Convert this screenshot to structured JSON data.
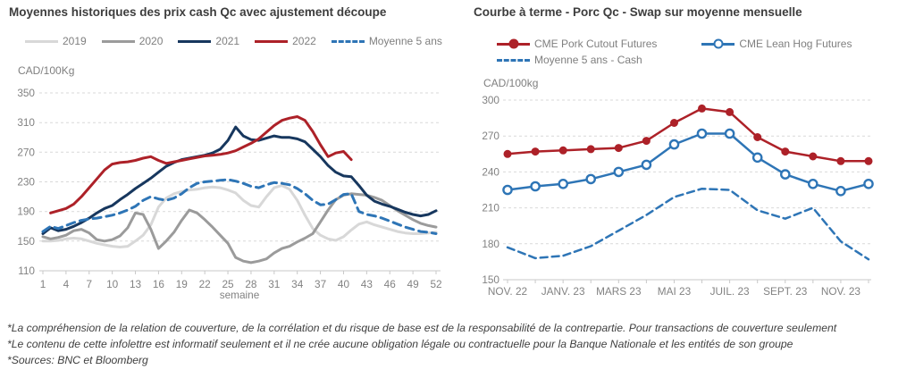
{
  "chart_data": [
    {
      "id": "left",
      "type": "line",
      "title": "Moyennes historiques des prix cash Qc avec ajustement découpe",
      "unit_label": "CAD/100Kg",
      "xlabel": "semaine",
      "x_start": 1,
      "x_end": 52,
      "x_ticks": [
        1,
        4,
        7,
        10,
        13,
        16,
        19,
        22,
        25,
        28,
        31,
        34,
        37,
        40,
        43,
        46,
        49,
        52
      ],
      "ylim": [
        110,
        350
      ],
      "y_ticks": [
        110,
        150,
        190,
        230,
        270,
        310,
        350
      ],
      "grid": "horizontal-dashed",
      "legend_position": "top",
      "legend_rows": [
        [
          0,
          1,
          2,
          3,
          4
        ]
      ],
      "series": [
        {
          "name": "2019",
          "color": "#d8d8d8",
          "line": "solid",
          "marker": "none",
          "values": [
            150,
            150,
            151,
            153,
            154,
            153,
            150,
            147,
            145,
            143,
            142,
            143,
            150,
            158,
            172,
            196,
            208,
            214,
            217,
            219,
            220,
            222,
            223,
            222,
            219,
            215,
            205,
            198,
            196,
            210,
            222,
            225,
            220,
            205,
            185,
            167,
            158,
            153,
            151,
            156,
            165,
            173,
            176,
            172,
            169,
            166,
            163,
            161,
            160,
            160,
            161,
            162
          ]
        },
        {
          "name": "2020",
          "color": "#9b9b9b",
          "line": "solid",
          "marker": "none",
          "values": [
            156,
            153,
            155,
            158,
            164,
            166,
            161,
            152,
            150,
            152,
            157,
            168,
            188,
            186,
            166,
            140,
            150,
            162,
            178,
            192,
            188,
            179,
            169,
            158,
            147,
            128,
            123,
            121,
            123,
            126,
            134,
            140,
            143,
            149,
            154,
            160,
            176,
            192,
            206,
            212,
            214,
            213,
            212,
            209,
            205,
            198,
            191,
            185,
            179,
            174,
            171,
            169
          ]
        },
        {
          "name": "2021",
          "color": "#17375e",
          "line": "solid",
          "marker": "none",
          "values": [
            160,
            168,
            164,
            166,
            170,
            175,
            181,
            188,
            194,
            198,
            206,
            213,
            221,
            228,
            235,
            243,
            251,
            256,
            260,
            262,
            264,
            266,
            269,
            274,
            286,
            304,
            292,
            287,
            286,
            289,
            292,
            290,
            290,
            288,
            284,
            274,
            264,
            252,
            243,
            238,
            237,
            225,
            212,
            204,
            200,
            197,
            193,
            189,
            186,
            184,
            186,
            191
          ]
        },
        {
          "name": "2022",
          "color": "#ad2128",
          "line": "solid",
          "marker": "none",
          "values": [
            null,
            188,
            191,
            194,
            200,
            210,
            222,
            234,
            246,
            254,
            256,
            257,
            259,
            262,
            264,
            259,
            255,
            257,
            259,
            261,
            263,
            265,
            266,
            267,
            269,
            272,
            277,
            282,
            288,
            297,
            306,
            313,
            316,
            318,
            313,
            298,
            280,
            264,
            269,
            271,
            260,
            null,
            null,
            null,
            null,
            null,
            null,
            null,
            null,
            null,
            null,
            null
          ]
        },
        {
          "name": "Moyenne 5 ans",
          "color": "#2e75b6",
          "line": "dashed",
          "marker": "none",
          "values": [
            163,
            170,
            167,
            171,
            175,
            178,
            180,
            181,
            183,
            185,
            188,
            192,
            197,
            205,
            210,
            207,
            205,
            208,
            214,
            222,
            228,
            230,
            231,
            232,
            233,
            231,
            228,
            224,
            222,
            226,
            229,
            228,
            226,
            221,
            214,
            205,
            199,
            200,
            206,
            213,
            214,
            190,
            186,
            184,
            181,
            177,
            173,
            169,
            166,
            163,
            162,
            160
          ]
        }
      ]
    },
    {
      "id": "right",
      "type": "line",
      "title": "Courbe à terme - Porc Qc - Swap sur moyenne mensuelle",
      "unit_label": "CAD/100kg",
      "x_labels": [
        "NOV. 22",
        "JANV. 23",
        "MARS 23",
        "MAI 23",
        "JUIL. 23",
        "SEPT. 23",
        "NOV. 23"
      ],
      "x_label_positions": [
        0,
        2,
        4,
        6,
        8,
        10,
        12
      ],
      "n_points": 14,
      "ylim": [
        150,
        300
      ],
      "y_ticks": [
        150,
        180,
        210,
        240,
        270,
        300
      ],
      "grid": "horizontal-dashed",
      "legend_position": "top",
      "legend_rows": [
        [
          0,
          1
        ],
        [
          2
        ]
      ],
      "series": [
        {
          "name": "CME Pork Cutout Futures",
          "color": "#ad2128",
          "line": "solid",
          "marker": "filled-circle",
          "values": [
            255,
            257,
            258,
            259,
            260,
            266,
            281,
            293,
            290,
            269,
            257,
            253,
            249,
            249
          ]
        },
        {
          "name": "CME Lean Hog Futures",
          "color": "#2e75b6",
          "line": "solid",
          "marker": "open-circle",
          "values": [
            225,
            228,
            230,
            234,
            240,
            246,
            263,
            272,
            272,
            252,
            238,
            230,
            224,
            230
          ]
        },
        {
          "name": "Moyenne 5 ans - Cash",
          "color": "#2e75b6",
          "line": "dashed",
          "marker": "none",
          "values": [
            177,
            168,
            170,
            178,
            191,
            204,
            219,
            226,
            225,
            208,
            201,
            210,
            182,
            167
          ]
        }
      ]
    }
  ],
  "footnotes": [
    "*La compréhension de la relation de couverture, de la corrélation et du risque de base est de la responsabilité de la contrepartie. Pour transactions de couverture seulement",
    "*Le contenu de cette infolettre est informatif seulement et il ne crée aucune obligation légale ou contractuelle pour la Banque Nationale et les entités de son groupe",
    "*Sources: BNC et Bloomberg"
  ]
}
